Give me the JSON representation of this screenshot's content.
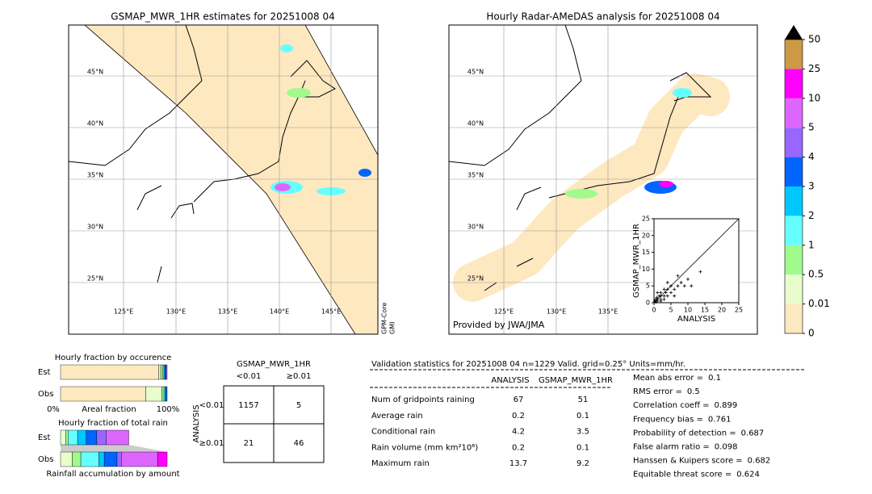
{
  "left_map": {
    "title": "GSMAP_MWR_1HR estimates for 20251008 04",
    "lat_labels": [
      "45°N",
      "40°N",
      "35°N",
      "30°N",
      "25°N"
    ],
    "lon_labels": [
      "125°E",
      "130°E",
      "135°E",
      "140°E",
      "145°E"
    ],
    "side_label": [
      "GPM-Core",
      "GMI"
    ]
  },
  "right_map": {
    "title": "Hourly Radar-AMeDAS analysis for 20251008 04",
    "lat_labels": [
      "45°N",
      "40°N",
      "35°N",
      "30°N",
      "25°N"
    ],
    "lon_labels": [
      "125°E",
      "130°E",
      "135°E"
    ],
    "credit": "Provided by JWA/JMA"
  },
  "chart_data": {
    "type": "scatter",
    "xlabel": "ANALYSIS",
    "ylabel": "GSMAP_MWR_1HR",
    "xlim": [
      0,
      25
    ],
    "ylim": [
      0,
      25
    ],
    "xticks": [
      0,
      5,
      10,
      15,
      20,
      25
    ],
    "yticks": [
      0,
      5,
      10,
      15,
      20,
      25
    ],
    "x": [
      13.7,
      10,
      8,
      7,
      6,
      5,
      5,
      4,
      4,
      3,
      3,
      2,
      2,
      1.5,
      1,
      1,
      0.5,
      0.5,
      2,
      3,
      0.2,
      6,
      9,
      1,
      4,
      7,
      11,
      2,
      0.8,
      3.5
    ],
    "y": [
      9.2,
      7,
      6,
      8,
      4,
      5,
      3,
      6,
      2,
      4,
      2,
      3,
      1,
      2,
      1,
      0.5,
      1,
      0.2,
      0.5,
      1,
      0.5,
      2,
      5,
      3,
      4,
      5,
      5,
      2,
      1.5,
      3
    ]
  },
  "colorbar": {
    "levels": [
      0,
      0.01,
      0.5,
      1,
      2,
      3,
      4,
      5,
      10,
      25,
      50
    ],
    "colors": [
      "#fde8c0",
      "#e8fccc",
      "#a0fa8c",
      "#66ffff",
      "#00c8ff",
      "#0064ff",
      "#9966ff",
      "#dd66ff",
      "#ff00ff",
      "#cc9944"
    ]
  },
  "occurrence": {
    "title": "Hourly fraction by occurence",
    "rows": [
      "Est",
      "Obs"
    ],
    "axis_labels": [
      "0%",
      "Areal fraction",
      "100%"
    ],
    "est": [
      0.92,
      0.02,
      0.02,
      0.01,
      0.01,
      0.01,
      0.01,
      0,
      0,
      0
    ],
    "obs": [
      0.8,
      0.15,
      0.02,
      0.01,
      0.01,
      0.01,
      0,
      0,
      0,
      0
    ]
  },
  "total_rain": {
    "title": "Hourly fraction of total rain",
    "rows": [
      "Est",
      "Obs"
    ],
    "footer": "Rainfall accumulation by amount",
    "est": [
      0,
      0.05,
      0.02,
      0.09,
      0.08,
      0.1,
      0.09,
      0.21,
      0,
      0
    ],
    "obs": [
      0,
      0.11,
      0.08,
      0.17,
      0.05,
      0.12,
      0.04,
      0.34,
      0.09,
      0
    ]
  },
  "contingency": {
    "title": "GSMAP_MWR_1HR",
    "columns": [
      "<0.01",
      "≥0.01"
    ],
    "row_title": "ANALYSIS",
    "rows": [
      "<0.01",
      "≥0.01"
    ],
    "cells": [
      [
        1157,
        5
      ],
      [
        21,
        46
      ]
    ]
  },
  "validation": {
    "title": "Validation statistics for 20251008 04  n=1229 Valid. grid=0.25° Units=mm/hr.",
    "columns": [
      "ANALYSIS",
      "GSMAP_MWR_1HR"
    ],
    "rows": [
      {
        "label": "Num of gridpoints raining",
        "analysis": 67,
        "gsmap": 51
      },
      {
        "label": "Average rain",
        "analysis": 0.2,
        "gsmap": 0.1
      },
      {
        "label": "Conditional rain",
        "analysis": 4.2,
        "gsmap": 3.5
      },
      {
        "label": "Rain volume (mm km²10⁶)",
        "analysis": 0.2,
        "gsmap": 0.1
      },
      {
        "label": "Maximum rain",
        "analysis": 13.7,
        "gsmap": 9.2
      }
    ],
    "scores": [
      {
        "label": "Mean abs error =",
        "value": 0.1
      },
      {
        "label": "RMS error =",
        "value": 0.5
      },
      {
        "label": "Correlation coeff =",
        "value": 0.899
      },
      {
        "label": "Frequency bias =",
        "value": 0.761
      },
      {
        "label": "Probability of detection =",
        "value": 0.687
      },
      {
        "label": "False alarm ratio =",
        "value": 0.098
      },
      {
        "label": "Hanssen & Kuipers score =",
        "value": 0.682
      },
      {
        "label": "Equitable threat score =",
        "value": 0.624
      }
    ]
  }
}
